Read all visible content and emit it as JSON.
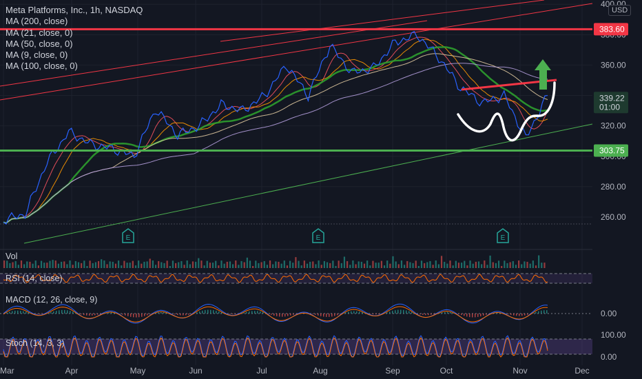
{
  "header": {
    "symbol_title": "Meta Platforms, Inc., 1h, NASDAQ",
    "currency": "USD"
  },
  "indicators": [
    "MA (200, close)",
    "MA (21, close, 0)",
    "MA (50, close, 0)",
    "MA (9, close, 0)",
    "MA (100, close, 0)"
  ],
  "panes": {
    "volume_label": "Vol",
    "rsi_label": "RSI (14, close)",
    "macd_label": "MACD (12, 26, close, 9)",
    "stoch_label": "Stoch (14, 3, 3)",
    "macd_tick": "0.00",
    "stoch_ticks": [
      "100.00",
      "0.00"
    ]
  },
  "colors": {
    "background": "#131722",
    "resistance": "#f23645",
    "support": "#4caf50",
    "up_arrow": "#4caf50",
    "ma_green": "#2e9e2e",
    "price_line": "#2962ff"
  },
  "price_tags": {
    "resistance": "383.60",
    "current": "339.22",
    "countdown": "01:00",
    "support": "303.75"
  },
  "annotations": {
    "earnings_marker": "E",
    "pattern": "inverse head and shoulders",
    "breakout": "up-arrow"
  },
  "chart_data": {
    "type": "line",
    "title": "Meta Platforms, Inc., 1h, NASDAQ",
    "x_ticks": [
      "Mar",
      "Apr",
      "May",
      "Jun",
      "Jul",
      "Aug",
      "Sep",
      "Oct",
      "Nov",
      "Dec"
    ],
    "y_ticks": [
      260,
      280,
      300,
      320,
      340,
      360,
      380,
      400
    ],
    "y_tick_labels": [
      "260.00",
      "280.00",
      "300.00",
      "320.00",
      "340.00",
      "360.00",
      "380.00",
      "400.00"
    ],
    "ylim": [
      247,
      402
    ],
    "horizontal_levels": [
      383.6,
      303.75
    ],
    "series": [
      {
        "name": "Price",
        "x": [
          "Mar",
          "Mar",
          "Mar",
          "Apr",
          "Apr",
          "Apr",
          "May",
          "May",
          "May",
          "Jun",
          "Jun",
          "Jun",
          "Jul",
          "Jul",
          "Jul",
          "Aug",
          "Aug",
          "Aug",
          "Sep",
          "Sep",
          "Sep",
          "Oct",
          "Oct",
          "Oct",
          "Nov",
          "Nov"
        ],
        "values": [
          258,
          262,
          296,
          316,
          308,
          305,
          300,
          331,
          314,
          320,
          334,
          330,
          340,
          360,
          340,
          373,
          355,
          358,
          375,
          380,
          365,
          345,
          335,
          340,
          312,
          340
        ]
      }
    ],
    "earnings_dates": [
      "Apr",
      "Jul",
      "Oct"
    ],
    "xlabel": "",
    "ylabel": ""
  }
}
